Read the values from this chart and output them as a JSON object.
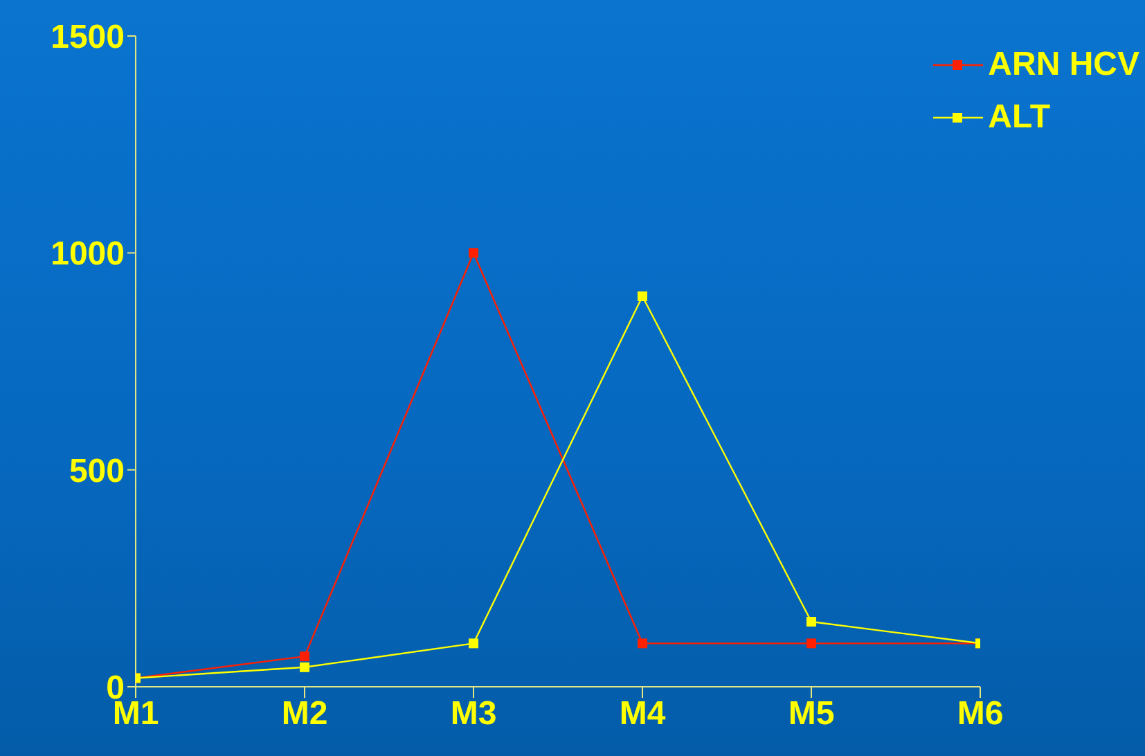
{
  "chart_data": {
    "type": "line",
    "categories": [
      "M1",
      "M2",
      "M3",
      "M4",
      "M5",
      "M6"
    ],
    "series": [
      {
        "name": "ARN HCV",
        "color": "#ff2000",
        "values": [
          20,
          70,
          1000,
          100,
          100,
          100
        ]
      },
      {
        "name": "ALT",
        "color": "#ffff00",
        "values": [
          20,
          45,
          100,
          900,
          150,
          100
        ]
      }
    ],
    "ylim": [
      0,
      1500
    ],
    "yticks": [
      0,
      500,
      1000,
      1500
    ],
    "marker": "square",
    "line_style": "solid",
    "legend": "top right",
    "grid": false
  }
}
